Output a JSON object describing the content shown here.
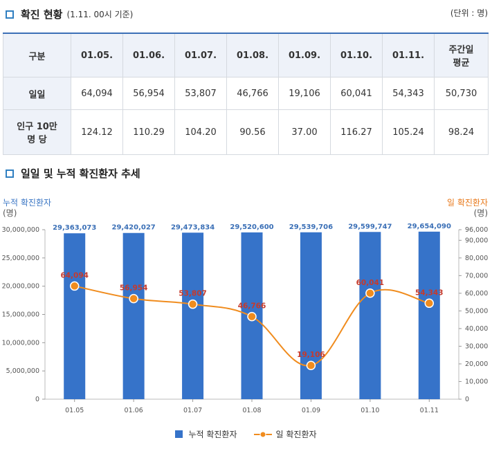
{
  "section1": {
    "title": "확진 현황",
    "subtitle": "(1.11. 00시 기준)",
    "unit": "(단위 : 명)"
  },
  "table": {
    "corner": "구분",
    "columns": [
      "01.05.",
      "01.06.",
      "01.07.",
      "01.08.",
      "01.09.",
      "01.10.",
      "01.11.",
      "주간일\n평균"
    ],
    "rows": [
      {
        "label": "일일",
        "values": [
          "64,094",
          "56,954",
          "53,807",
          "46,766",
          "19,106",
          "60,041",
          "54,343",
          "50,730"
        ]
      },
      {
        "label": "인구 10만\n명 당",
        "values": [
          "124.12",
          "110.29",
          "104.20",
          "90.56",
          "37.00",
          "116.27",
          "105.24",
          "98.24"
        ]
      }
    ]
  },
  "section2": {
    "title": "일일 및 누적 확진환자 추세"
  },
  "chart_labels": {
    "left_title": "누적 확진환자",
    "left_unit": "(명)",
    "right_title": "일 확진환자",
    "right_unit": "(명)"
  },
  "colors": {
    "bar": "#3673c9",
    "line": "#f08c1e",
    "left_title": "#3a76c4",
    "right_title": "#e8791b",
    "bar_label": "#3a6fb6",
    "line_label": "#c53a2c"
  },
  "chart_data": {
    "type": "bar",
    "categories": [
      "01.05",
      "01.06",
      "01.07",
      "01.08",
      "01.09",
      "01.10",
      "01.11"
    ],
    "series": [
      {
        "name": "누적 확진환자",
        "type": "bar",
        "axis": "left",
        "values": [
          29363073,
          29420027,
          29473834,
          29520600,
          29539706,
          29599747,
          29654090
        ],
        "labels": [
          "29,363,073",
          "29,420,027",
          "29,473,834",
          "29,520,600",
          "29,539,706",
          "29,599,747",
          "29,654,090"
        ]
      },
      {
        "name": "일 확진환자",
        "type": "line",
        "axis": "right",
        "values": [
          64094,
          56954,
          53807,
          46766,
          19106,
          60041,
          54343
        ],
        "labels": [
          "64,094",
          "56,954",
          "53,807",
          "46,766",
          "19,106",
          "60,041",
          "54,343"
        ]
      }
    ],
    "ylim_left": [
      0,
      30000000
    ],
    "yticks_left": [
      "0",
      "5,000,000",
      "10,000,000",
      "15,000,000",
      "20,000,000",
      "25,000,000",
      "30,000,000"
    ],
    "ylim_right": [
      0,
      96000
    ],
    "yticks_right": [
      "0",
      "10,000",
      "20,000",
      "30,000",
      "40,000",
      "50,000",
      "60,000",
      "70,000",
      "80,000",
      "90,000",
      "96,000"
    ],
    "yticks_right_values": [
      0,
      10000,
      20000,
      30000,
      40000,
      50000,
      60000,
      70000,
      80000,
      90000,
      96000
    ],
    "legend_position": "bottom"
  }
}
